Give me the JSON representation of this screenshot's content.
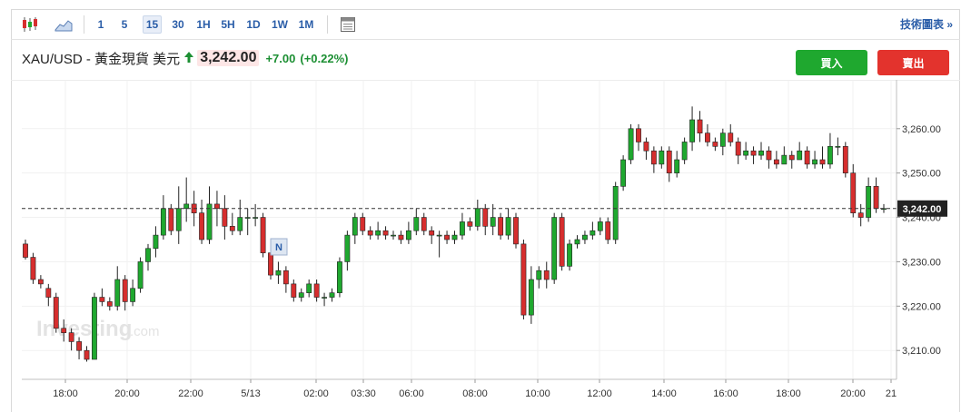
{
  "toolbar": {
    "timeframes": [
      "1",
      "5",
      "15",
      "30",
      "1H",
      "5H",
      "1D",
      "1W",
      "1M"
    ],
    "active_timeframe": "15",
    "tech_link": "技術圖表 »",
    "icons": [
      "candlestick-chart-icon",
      "area-chart-icon",
      "table-icon"
    ]
  },
  "header": {
    "instrument": "XAU/USD - 黃金現貨 美元",
    "price": "3,242.00",
    "change": "+7.00",
    "change_pct": "(+0.22%)"
  },
  "buttons": {
    "buy": "買入",
    "sell": "賣出"
  },
  "watermark": {
    "main": "Investing",
    "suffix": ".com"
  },
  "marker": "N",
  "colors": {
    "up": "#1fa82f",
    "down": "#d62e2e",
    "accent": "#2a5da8",
    "price_tag": "#222222"
  },
  "chart_data": {
    "type": "candlestick",
    "x_ticks": [
      "18:00",
      "20:00",
      "22:00",
      "5/13",
      "02:00",
      "03:30",
      "06:00",
      "08:00",
      "10:00",
      "12:00",
      "14:00",
      "16:00",
      "18:00",
      "20:00",
      "21"
    ],
    "y_ticks": [
      "3,210.00",
      "3,220.00",
      "3,230.00",
      "3,240.00",
      "3,250.00",
      "3,260.00"
    ],
    "ylim": [
      3203.5,
      3271
    ],
    "last_price": 3242.0,
    "last_price_label": "3,242.00",
    "candles": [
      [
        3234,
        3231,
        3235,
        3230.5
      ],
      [
        3231,
        3226,
        3232,
        3225
      ],
      [
        3226,
        3225,
        3227,
        3224
      ],
      [
        3224,
        3222,
        3225,
        3220
      ],
      [
        3222,
        3215,
        3223,
        3214
      ],
      [
        3215,
        3214,
        3217,
        3212
      ],
      [
        3214,
        3212,
        3215,
        3210
      ],
      [
        3212,
        3210,
        3213,
        3208
      ],
      [
        3210,
        3208,
        3211,
        3207.5
      ],
      [
        3208,
        3222,
        3223,
        3208
      ],
      [
        3222,
        3221,
        3224,
        3220
      ],
      [
        3221,
        3220,
        3222,
        3219
      ],
      [
        3220,
        3226,
        3229,
        3219
      ],
      [
        3226,
        3221,
        3227,
        3219
      ],
      [
        3221,
        3224,
        3226,
        3220
      ],
      [
        3224,
        3230,
        3231,
        3223
      ],
      [
        3230,
        3233,
        3234,
        3228
      ],
      [
        3233,
        3236,
        3238,
        3231
      ],
      [
        3236,
        3242,
        3245,
        3235
      ],
      [
        3242,
        3237,
        3243,
        3236
      ],
      [
        3237,
        3242,
        3247,
        3234
      ],
      [
        3242,
        3243,
        3249,
        3239
      ],
      [
        3243,
        3241,
        3246,
        3238
      ],
      [
        3241,
        3235,
        3244,
        3234
      ],
      [
        3235,
        3243,
        3247,
        3234
      ],
      [
        3243,
        3242,
        3246,
        3238
      ],
      [
        3242,
        3238,
        3245,
        3235
      ],
      [
        3238,
        3237,
        3241,
        3236
      ],
      [
        3237,
        3240,
        3244,
        3236
      ],
      [
        3240,
        3240,
        3242,
        3236
      ],
      [
        3240,
        3240,
        3243,
        3238
      ],
      [
        3240,
        3232,
        3241,
        3231
      ],
      [
        3232,
        3227,
        3233,
        3226
      ],
      [
        3227,
        3228,
        3230,
        3225
      ],
      [
        3228,
        3225,
        3229,
        3223
      ],
      [
        3225,
        3222,
        3226,
        3221
      ],
      [
        3222,
        3223,
        3224,
        3221
      ],
      [
        3223,
        3225,
        3226,
        3222
      ],
      [
        3225,
        3222,
        3226,
        3221
      ],
      [
        3222,
        3222,
        3223,
        3220
      ],
      [
        3222,
        3223,
        3224,
        3221
      ],
      [
        3223,
        3230,
        3231,
        3222
      ],
      [
        3230,
        3236,
        3237,
        3228
      ],
      [
        3236,
        3240,
        3241,
        3234
      ],
      [
        3240,
        3237,
        3241,
        3236
      ],
      [
        3237,
        3236,
        3238,
        3235
      ],
      [
        3236,
        3237,
        3239,
        3235
      ],
      [
        3237,
        3236,
        3238,
        3235
      ],
      [
        3236,
        3236,
        3237,
        3235
      ],
      [
        3236,
        3235,
        3237,
        3234
      ],
      [
        3235,
        3237,
        3239,
        3234
      ],
      [
        3237,
        3240,
        3242,
        3236
      ],
      [
        3240,
        3237,
        3241,
        3236
      ],
      [
        3237,
        3236,
        3238,
        3234
      ],
      [
        3236,
        3236,
        3237,
        3231
      ],
      [
        3236,
        3235,
        3237,
        3234
      ],
      [
        3235,
        3236,
        3237,
        3234
      ],
      [
        3236,
        3239,
        3241,
        3235
      ],
      [
        3239,
        3238,
        3240,
        3237
      ],
      [
        3238,
        3242,
        3244,
        3237
      ],
      [
        3242,
        3238,
        3243,
        3236
      ],
      [
        3238,
        3240,
        3243,
        3236
      ],
      [
        3240,
        3236,
        3241,
        3235
      ],
      [
        3236,
        3240,
        3242,
        3235
      ],
      [
        3240,
        3234,
        3241,
        3233
      ],
      [
        3234,
        3218,
        3235,
        3217
      ],
      [
        3218,
        3226,
        3229,
        3216
      ],
      [
        3226,
        3228,
        3229,
        3224
      ],
      [
        3228,
        3226,
        3230,
        3224
      ],
      [
        3226,
        3240,
        3241,
        3225
      ],
      [
        3240,
        3229,
        3241,
        3228
      ],
      [
        3229,
        3234,
        3235,
        3228
      ],
      [
        3234,
        3235,
        3236,
        3233
      ],
      [
        3235,
        3236,
        3237,
        3234
      ],
      [
        3236,
        3237,
        3239,
        3235
      ],
      [
        3237,
        3239,
        3240,
        3236
      ],
      [
        3239,
        3235,
        3240,
        3234
      ],
      [
        3235,
        3247,
        3248,
        3234
      ],
      [
        3247,
        3253,
        3254,
        3246
      ],
      [
        3253,
        3260,
        3261,
        3252
      ],
      [
        3260,
        3257,
        3261,
        3255
      ],
      [
        3257,
        3255,
        3258,
        3253
      ],
      [
        3255,
        3252,
        3256,
        3250
      ],
      [
        3252,
        3255,
        3256,
        3251
      ],
      [
        3255,
        3250,
        3256,
        3248
      ],
      [
        3250,
        3253,
        3255,
        3249
      ],
      [
        3253,
        3257,
        3258,
        3252
      ],
      [
        3257,
        3262,
        3265,
        3255
      ],
      [
        3262,
        3259,
        3264,
        3257
      ],
      [
        3259,
        3257,
        3261,
        3256
      ],
      [
        3257,
        3256,
        3258,
        3255
      ],
      [
        3256,
        3259,
        3260,
        3254
      ],
      [
        3259,
        3257,
        3261,
        3256
      ],
      [
        3257,
        3254,
        3258,
        3252
      ],
      [
        3254,
        3255,
        3257,
        3253
      ],
      [
        3255,
        3254,
        3256,
        3252
      ],
      [
        3254,
        3255,
        3257,
        3253
      ],
      [
        3255,
        3253,
        3256,
        3251
      ],
      [
        3253,
        3252,
        3255,
        3251
      ],
      [
        3252,
        3254,
        3256,
        3252
      ],
      [
        3254,
        3253,
        3255,
        3251
      ],
      [
        3253,
        3255,
        3257,
        3253
      ],
      [
        3255,
        3252,
        3256,
        3251
      ],
      [
        3252,
        3253,
        3255,
        3251
      ],
      [
        3253,
        3252,
        3256,
        3251
      ],
      [
        3252,
        3256,
        3259,
        3251
      ],
      [
        3256,
        3256,
        3258,
        3254
      ],
      [
        3256,
        3250,
        3257,
        3249
      ],
      [
        3250,
        3241,
        3252,
        3240
      ],
      [
        3241,
        3240,
        3243,
        3238
      ],
      [
        3240,
        3247,
        3249,
        3239
      ],
      [
        3247,
        3242,
        3249,
        3241
      ],
      [
        3242,
        3242,
        3243,
        3241
      ]
    ]
  }
}
